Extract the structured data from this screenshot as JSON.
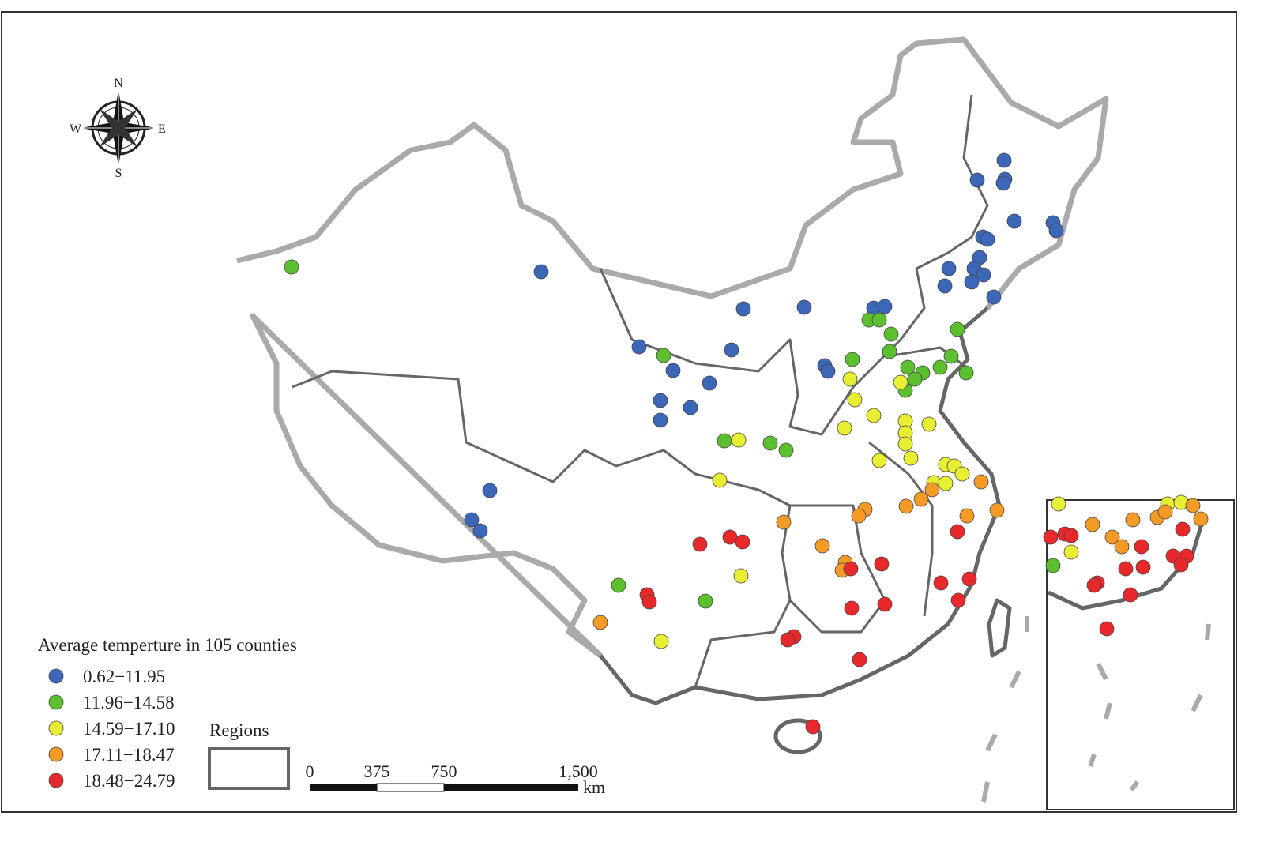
{
  "compass": {
    "n": "N",
    "e": "E",
    "s": "S",
    "w": "W"
  },
  "legend": {
    "title": "Average temperture in 105 counties",
    "items": [
      {
        "label": "0.62−11.95",
        "color": "#3c66b8"
      },
      {
        "label": "11.96−14.58",
        "color": "#5cbf2e"
      },
      {
        "label": "14.59−17.10",
        "color": "#e8ee32"
      },
      {
        "label": "17.11−18.47",
        "color": "#f59a25"
      },
      {
        "label": "18.48−24.79",
        "color": "#e8282a"
      }
    ],
    "regions": "Regions"
  },
  "scale_bar": {
    "labels": [
      "0",
      "375",
      "750",
      "1,500"
    ],
    "unit": "km"
  }
}
